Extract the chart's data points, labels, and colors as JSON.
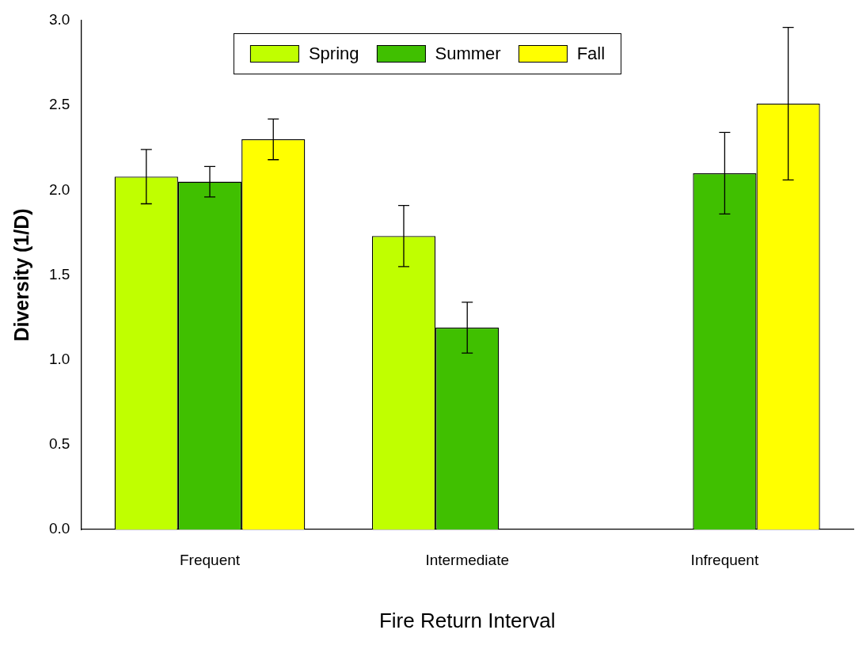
{
  "chart_data": {
    "type": "bar",
    "xlabel": "Fire Return Interval",
    "ylabel": "Diversity (1/D)",
    "categories": [
      "Frequent",
      "Intermediate",
      "Infrequent"
    ],
    "series": [
      {
        "name": "Spring",
        "color": "#c0ff00",
        "values": [
          2.08,
          1.73,
          null
        ],
        "errors": [
          0.16,
          0.18,
          null
        ]
      },
      {
        "name": "Summer",
        "color": "#40c000",
        "values": [
          2.05,
          1.19,
          2.1
        ],
        "errors": [
          0.09,
          0.15,
          0.24
        ]
      },
      {
        "name": "Fall",
        "color": "#ffff00",
        "values": [
          2.3,
          null,
          2.51
        ],
        "errors": [
          0.12,
          null,
          0.45
        ]
      }
    ],
    "ylim": [
      0,
      3
    ],
    "yticks": [
      {
        "value": 0,
        "label": "0.0"
      },
      {
        "value": 0.5,
        "label": "0.5"
      },
      {
        "value": 1,
        "label": "1.0"
      },
      {
        "value": 1.5,
        "label": "1.5"
      },
      {
        "value": 2,
        "label": "2.0"
      },
      {
        "value": 2.5,
        "label": "2.5"
      },
      {
        "value": 3,
        "label": "3.0"
      }
    ],
    "grid": false,
    "legend": "top"
  }
}
